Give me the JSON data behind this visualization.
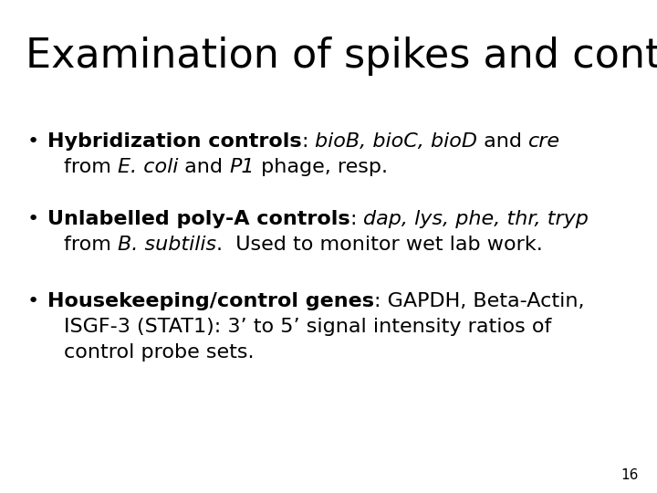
{
  "title": "Examination of spikes and controls",
  "background_color": "#ffffff",
  "text_color": "#000000",
  "title_fontsize": 32,
  "body_fontsize": 16,
  "page_number": "16",
  "bullet_char": "•",
  "bullets": [
    {
      "line1_segments": [
        [
          "Hybridization controls",
          "bold",
          "normal"
        ],
        [
          ": ",
          "normal",
          "normal"
        ],
        [
          "bioB, bioC, bioD",
          "normal",
          "italic"
        ],
        [
          " and ",
          "normal",
          "normal"
        ],
        [
          "cre",
          "normal",
          "italic"
        ]
      ],
      "line2_segments": [
        [
          "from ",
          "normal",
          "normal"
        ],
        [
          "E. coli",
          "normal",
          "italic"
        ],
        [
          " and ",
          "normal",
          "normal"
        ],
        [
          "P1",
          "normal",
          "italic"
        ],
        [
          " phage, resp.",
          "normal",
          "normal"
        ]
      ]
    },
    {
      "line1_segments": [
        [
          "Unlabelled poly-A controls",
          "bold",
          "normal"
        ],
        [
          ": ",
          "normal",
          "normal"
        ],
        [
          "dap, lys, phe, thr, tryp",
          "normal",
          "italic"
        ]
      ],
      "line2_segments": [
        [
          "from ",
          "normal",
          "normal"
        ],
        [
          "B. subtilis",
          "normal",
          "italic"
        ],
        [
          ".  Used to monitor wet lab work.",
          "normal",
          "normal"
        ]
      ]
    },
    {
      "line1_segments": [
        [
          "Housekeeping/control genes",
          "bold",
          "normal"
        ],
        [
          ": GAPDH, Beta-Actin,",
          "normal",
          "normal"
        ]
      ],
      "line2_segments": [
        [
          "ISGF-3 (STAT1): 3’ to 5’ signal intensity ratios of",
          "normal",
          "normal"
        ]
      ],
      "line3_segments": [
        [
          "control probe sets.",
          "normal",
          "normal"
        ]
      ]
    }
  ]
}
